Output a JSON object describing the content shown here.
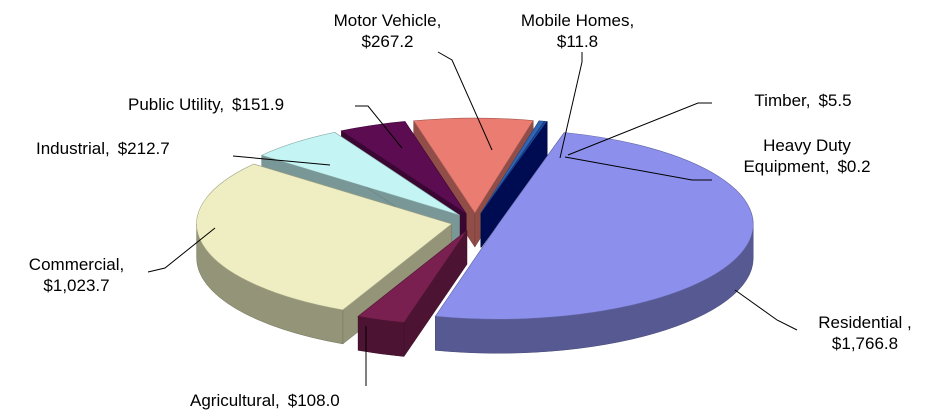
{
  "chart_data": {
    "type": "pie",
    "categories": [
      "Residential ,",
      "Agricultural,",
      "Commercial,",
      "Industrial,",
      "Public Utility,",
      "Motor Vehicle,",
      "Mobile Homes,",
      "Timber,",
      "Heavy Duty Equipment,"
    ],
    "values": [
      1766.8,
      108.0,
      1023.7,
      212.7,
      151.9,
      267.2,
      11.8,
      5.5,
      0.2
    ],
    "value_labels": [
      "$1,766.8",
      "$108.0",
      "$1,023.7",
      "$212.7",
      "$151.9",
      "$267.2",
      "$11.8",
      "$5.5",
      "$0.2"
    ],
    "colors": [
      "#8c90ec",
      "#7a2050",
      "#eeeec2",
      "#c4f4f4",
      "#5c0c50",
      "#ea7c72",
      "#3264b4",
      "#1c4ca0",
      "#001484"
    ]
  }
}
